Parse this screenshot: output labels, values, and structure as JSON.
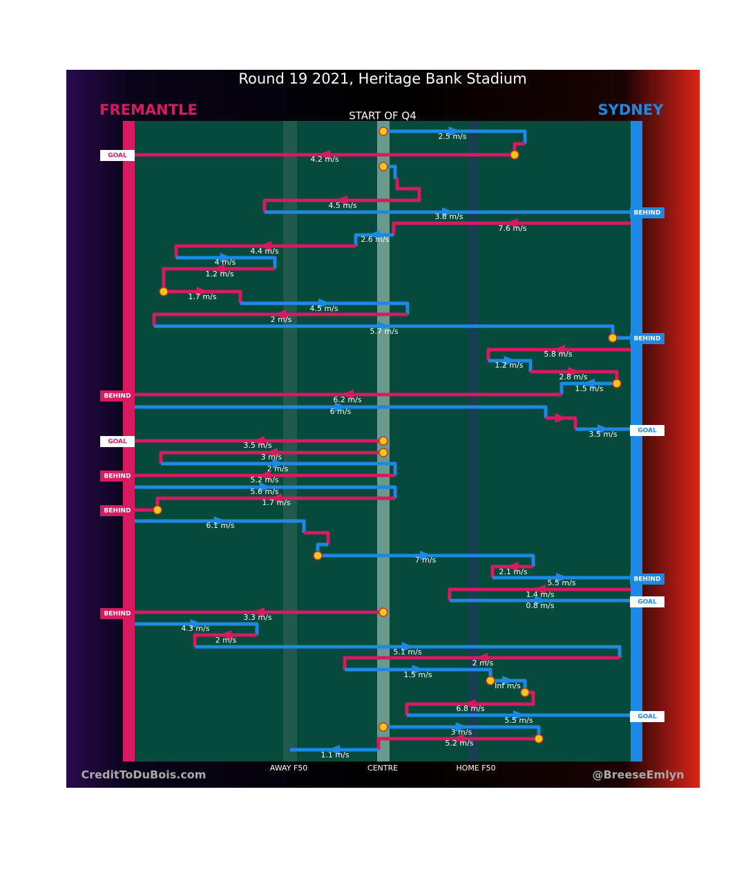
{
  "header": {
    "title": "Round 19 2021, Heritage Bank Stadium",
    "subtitle": "START OF Q4"
  },
  "teams": {
    "left": "FREMANTLE",
    "right": "SYDNEY"
  },
  "field_labels": [
    "AWAY F50",
    "CENTRE",
    "HOME F50"
  ],
  "footer": {
    "left": "CreditToDuBois.com",
    "right": "@BreeseEmlyn"
  },
  "moves": [
    "2.5 m/s",
    "4.2 m/s",
    "4.5 m/s",
    "3.8 m/s",
    "7.6 m/s",
    "2.6 m/s",
    "4.4 m/s",
    "4 m/s",
    "1.2 m/s",
    "1.7 m/s",
    "4.5 m/s",
    "2 m/s",
    "5.7 m/s",
    "5.8 m/s",
    "1.2 m/s",
    "2.8 m/s",
    "1.5 m/s",
    "6.2 m/s",
    "6 m/s",
    "3.5 m/s",
    "3.5 m/s",
    "3 m/s",
    "2 m/s",
    "5.2 m/s",
    "5.6 m/s",
    "1.7 m/s",
    "6.1 m/s",
    "7 m/s",
    "2.1 m/s",
    "5.5 m/s",
    "1.4 m/s",
    "0.8 m/s",
    "3.3 m/s",
    "4.3 m/s",
    "2 m/s",
    "5.1 m/s",
    "2 m/s",
    "1.5 m/s",
    "Inf m/s",
    "6.8 m/s",
    "5.5 m/s",
    "3 m/s",
    "5.2 m/s",
    "1.1 m/s"
  ],
  "outcomes": [
    {
      "text": "GOAL",
      "side": "left"
    },
    {
      "text": "BEHIND",
      "side": "right"
    },
    {
      "text": "BEHIND",
      "side": "right"
    },
    {
      "text": "BEHIND",
      "side": "left"
    },
    {
      "text": "GOAL",
      "side": "right"
    },
    {
      "text": "GOAL",
      "side": "left"
    },
    {
      "text": "BEHIND",
      "side": "left"
    },
    {
      "text": "BEHIND",
      "side": "left"
    },
    {
      "text": "BEHIND",
      "side": "right"
    },
    {
      "text": "GOAL",
      "side": "right"
    },
    {
      "text": "BEHIND",
      "side": "left"
    },
    {
      "text": "GOAL",
      "side": "right"
    }
  ]
}
